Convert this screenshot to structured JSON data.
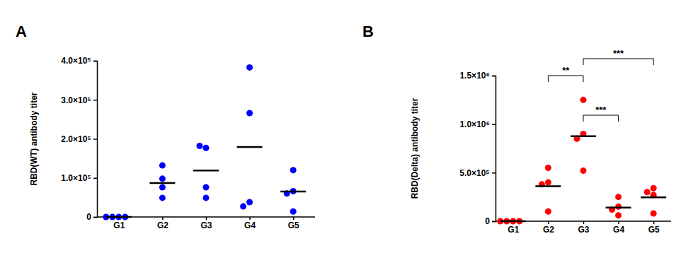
{
  "chart_data": [
    {
      "type": "scatter",
      "title": "A",
      "ylabel": "RBD(WT) antibody titer",
      "categories": [
        "G1",
        "G2",
        "G3",
        "G4",
        "G5"
      ],
      "values": [
        [
          0,
          0,
          0,
          0
        ],
        [
          132000,
          98000,
          76000,
          49000
        ],
        [
          177000,
          182000,
          76000,
          49000
        ],
        [
          383000,
          266000,
          38000,
          27000
        ],
        [
          120000,
          66000,
          60000,
          14000
        ]
      ],
      "means": [
        0,
        87000,
        119000,
        179000,
        65000
      ],
      "color": "#0000ff",
      "ylim": [
        0,
        400000
      ],
      "yticks": [
        0,
        {
          "value": 100000,
          "label": "1.0×10⁵"
        },
        {
          "value": 200000,
          "label": "2.0×10⁵"
        },
        {
          "value": 300000,
          "label": "3.0×10⁵"
        },
        {
          "value": 400000,
          "label": "4.0×10⁵"
        }
      ]
    },
    {
      "type": "scatter",
      "title": "B",
      "ylabel": "RBD(Delta) antibody titer",
      "categories": [
        "G1",
        "G2",
        "G3",
        "G4",
        "G5"
      ],
      "values": [
        [
          0,
          0,
          0,
          0
        ],
        [
          550000,
          400000,
          380000,
          100000
        ],
        [
          1250000,
          900000,
          850000,
          520000
        ],
        [
          250000,
          150000,
          120000,
          60000
        ],
        [
          340000,
          300000,
          270000,
          80000
        ]
      ],
      "means": [
        0,
        360000,
        875000,
        140000,
        245000
      ],
      "color": "#ff0000",
      "ylim": [
        0,
        1500000
      ],
      "yticks": [
        0,
        {
          "value": 500000,
          "label": "5.0×10⁵"
        },
        {
          "value": 1000000,
          "label": "1.0×10⁶"
        },
        {
          "value": 1500000,
          "label": "1.5×10⁶"
        }
      ],
      "annotations": [
        {
          "from": "G2",
          "to": "G3",
          "label": "**"
        },
        {
          "from": "G3",
          "to": "G4",
          "label": "***"
        },
        {
          "from": "G3",
          "to": "G5",
          "label": "***"
        }
      ]
    }
  ]
}
